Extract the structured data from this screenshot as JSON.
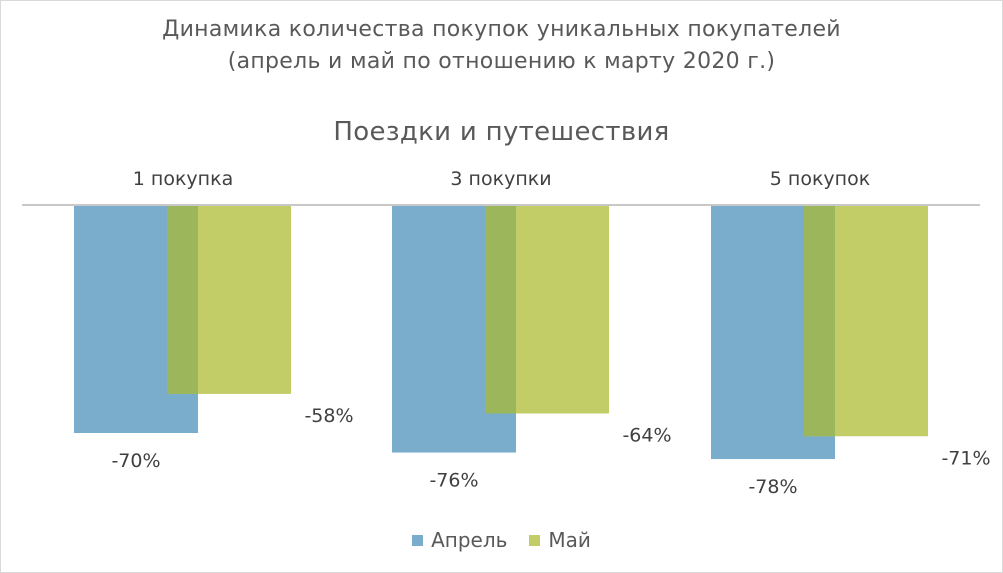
{
  "chart_data": {
    "type": "bar",
    "title_lines": [
      "Динамика количества покупок уникальных покупателей",
      "(апрель и май по отношению к марту 2020 г.)"
    ],
    "subtitle": "Поездки и путешествия",
    "categories": [
      "1 покупка",
      "3 покупки",
      "5 покупок"
    ],
    "series": [
      {
        "name": "Апрель",
        "values": [
          -70,
          -76,
          -78
        ],
        "labels": [
          "-70%",
          "-76%",
          "-78%"
        ],
        "color": "#7aaccb"
      },
      {
        "name": "Май",
        "values": [
          -58,
          -64,
          -71
        ],
        "labels": [
          "-58%",
          "-64%",
          "-71%"
        ],
        "color": "#c2cd67"
      }
    ],
    "overlap_color": "#9bb65b",
    "ylim": [
      -100,
      0
    ],
    "grid": false,
    "legend_position": "bottom"
  }
}
